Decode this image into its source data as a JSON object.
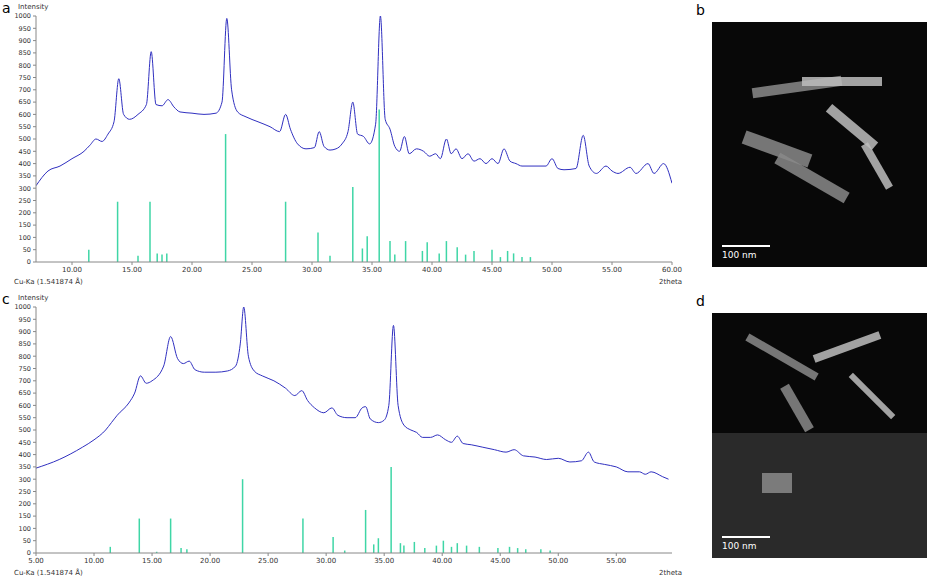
{
  "chart_data": [
    {
      "panel_label": "a",
      "type": "line",
      "y_label": "Intensity",
      "x_label": "2theta",
      "annotation": "Cu-Ka (1.541874 Å)",
      "color": "#3030c0",
      "grid": false,
      "xlim": [
        7,
        60
      ],
      "ylim": [
        0,
        1000
      ],
      "xticks": [
        {
          "value": 10,
          "label": "10.00"
        },
        {
          "value": 15,
          "label": "15.00"
        },
        {
          "value": 20,
          "label": "20.00"
        },
        {
          "value": 25,
          "label": "25.00"
        },
        {
          "value": 30,
          "label": "30.00"
        },
        {
          "value": 35,
          "label": "35.00"
        },
        {
          "value": 40,
          "label": "40.00"
        },
        {
          "value": 45,
          "label": "45.00"
        },
        {
          "value": 50,
          "label": "50.00"
        },
        {
          "value": 55,
          "label": "55.00"
        },
        {
          "value": 60,
          "label": "60.00"
        }
      ],
      "yticks": [
        0,
        50,
        100,
        150,
        200,
        250,
        300,
        350,
        400,
        450,
        500,
        550,
        600,
        650,
        700,
        750,
        800,
        850,
        900,
        950,
        1000
      ],
      "x": [
        7,
        8,
        9,
        10,
        11,
        11.5,
        12,
        12.5,
        13,
        13.5,
        13.9,
        14.3,
        14.8,
        15.5,
        16.2,
        16.6,
        17,
        17.5,
        18,
        18.5,
        19,
        20,
        21,
        22,
        22.5,
        22.9,
        23.3,
        23.8,
        24.5,
        25.5,
        26.5,
        27.3,
        27.8,
        28.2,
        28.8,
        29.5,
        30.2,
        30.6,
        31,
        31.5,
        32,
        32.5,
        33,
        33.4,
        33.8,
        34.3,
        34.8,
        35.3,
        35.7,
        36.1,
        36.5,
        36.9,
        37.3,
        37.7,
        38.1,
        38.7,
        39.3,
        39.8,
        40.3,
        40.7,
        41.2,
        41.6,
        42,
        42.5,
        43,
        43.5,
        44,
        44.5,
        45,
        45.5,
        46,
        46.5,
        47,
        47.5,
        48,
        49,
        49.5,
        50,
        50.5,
        51,
        52,
        52.6,
        53.1,
        53.7,
        54.5,
        55,
        55.5,
        56.5,
        57,
        58,
        58.5,
        59.3,
        60
      ],
      "values": [
        310,
        370,
        390,
        420,
        450,
        475,
        500,
        490,
        520,
        570,
        745,
        600,
        580,
        600,
        640,
        855,
        640,
        635,
        660,
        630,
        610,
        605,
        600,
        605,
        650,
        990,
        700,
        610,
        590,
        570,
        550,
        530,
        600,
        540,
        480,
        460,
        465,
        530,
        470,
        455,
        460,
        480,
        530,
        650,
        520,
        510,
        480,
        560,
        1000,
        580,
        540,
        470,
        450,
        510,
        440,
        460,
        450,
        430,
        440,
        420,
        500,
        440,
        460,
        420,
        440,
        410,
        420,
        400,
        420,
        400,
        460,
        410,
        400,
        390,
        390,
        390,
        390,
        420,
        380,
        375,
        380,
        515,
        390,
        360,
        390,
        370,
        360,
        385,
        360,
        400,
        360,
        400,
        320
      ],
      "reference": {
        "type": "bar",
        "color": "#3fd6a6",
        "x": [
          11.4,
          13.8,
          15.5,
          16.5,
          17.1,
          17.5,
          17.9,
          22.8,
          27.8,
          30.5,
          31.5,
          33.4,
          34.2,
          34.6,
          35.6,
          36.5,
          36.9,
          37.8,
          39.2,
          39.6,
          40.6,
          41.2,
          42.1,
          42.8,
          43.5,
          45,
          45.7,
          46.3,
          46.8,
          47.5,
          48.2
        ],
        "values": [
          50,
          245,
          25,
          245,
          35,
          30,
          35,
          520,
          245,
          120,
          25,
          305,
          55,
          105,
          620,
          85,
          30,
          85,
          45,
          80,
          35,
          85,
          60,
          30,
          45,
          50,
          20,
          45,
          35,
          20,
          20
        ]
      }
    },
    {
      "panel_label": "c",
      "type": "line",
      "y_label": "Intensity",
      "x_label": "2theta",
      "annotation": "Cu-Ka (1.541874 Å)",
      "color": "#3030c0",
      "grid": false,
      "xlim": [
        5,
        59.8
      ],
      "ylim": [
        0,
        1000
      ],
      "xticks": [
        {
          "value": 5,
          "label": "5.00"
        },
        {
          "value": 10,
          "label": "10.00"
        },
        {
          "value": 15,
          "label": "15.00"
        },
        {
          "value": 20,
          "label": "20.00"
        },
        {
          "value": 25,
          "label": "25.00"
        },
        {
          "value": 30,
          "label": "30.00"
        },
        {
          "value": 35,
          "label": "35.00"
        },
        {
          "value": 40,
          "label": "40.00"
        },
        {
          "value": 45,
          "label": "45.00"
        },
        {
          "value": 50,
          "label": "50.00"
        },
        {
          "value": 55,
          "label": "55.00"
        }
      ],
      "yticks": [
        0,
        50,
        100,
        150,
        200,
        250,
        300,
        350,
        400,
        450,
        500,
        550,
        600,
        650,
        700,
        750,
        800,
        850,
        900,
        950,
        1000
      ],
      "x": [
        5,
        7,
        9,
        10,
        11,
        11.5,
        12,
        13,
        13.5,
        14,
        14.5,
        15,
        16,
        16.6,
        17.2,
        17.7,
        18.2,
        18.7,
        19.5,
        20.5,
        21.5,
        22.2,
        22.6,
        22.9,
        23.3,
        23.8,
        24.5,
        25.5,
        26.5,
        27.3,
        27.9,
        28.4,
        29,
        29.8,
        30.5,
        31,
        31.8,
        32.5,
        33.1,
        33.4,
        33.8,
        34.5,
        35,
        35.4,
        35.8,
        36.2,
        36.7,
        37.3,
        37.8,
        38.3,
        39,
        39.6,
        40.3,
        40.8,
        41.3,
        41.8,
        42.5,
        43.5,
        44.5,
        45.5,
        46.2,
        47,
        48,
        49,
        50,
        51,
        52,
        52.6,
        53.1,
        54,
        55,
        56,
        57,
        57.5,
        58,
        59,
        59.5
      ],
      "values": [
        345,
        380,
        430,
        460,
        500,
        530,
        560,
        610,
        650,
        720,
        690,
        700,
        760,
        880,
        790,
        770,
        780,
        745,
        735,
        735,
        740,
        760,
        850,
        1000,
        800,
        740,
        720,
        700,
        670,
        640,
        660,
        620,
        590,
        570,
        590,
        560,
        550,
        550,
        590,
        595,
        545,
        530,
        540,
        600,
        925,
        600,
        520,
        500,
        490,
        470,
        470,
        480,
        460,
        450,
        475,
        445,
        440,
        430,
        420,
        410,
        420,
        395,
        390,
        380,
        385,
        370,
        375,
        410,
        370,
        360,
        350,
        330,
        330,
        320,
        330,
        310,
        300
      ],
      "reference": {
        "type": "bar",
        "color": "#3fd6a6",
        "x": [
          11.4,
          13.9,
          15.4,
          16.6,
          17.5,
          18,
          22.8,
          28,
          30.6,
          31.6,
          33.4,
          34.1,
          34.5,
          35.6,
          36.4,
          36.7,
          37.6,
          38.5,
          39.5,
          40.1,
          40.8,
          41.3,
          42.1,
          43.2,
          44.8,
          45.8,
          46.5,
          47.2,
          48.5,
          49.3
        ],
        "values": [
          25,
          140,
          5,
          140,
          20,
          15,
          300,
          140,
          65,
          10,
          175,
          35,
          60,
          350,
          40,
          30,
          45,
          20,
          30,
          50,
          25,
          40,
          30,
          25,
          20,
          25,
          20,
          15,
          15,
          10
        ]
      }
    }
  ],
  "images": [
    {
      "panel_label": "b",
      "scale_bar": "100 nm"
    },
    {
      "panel_label": "d",
      "scale_bar": "100 nm"
    }
  ]
}
